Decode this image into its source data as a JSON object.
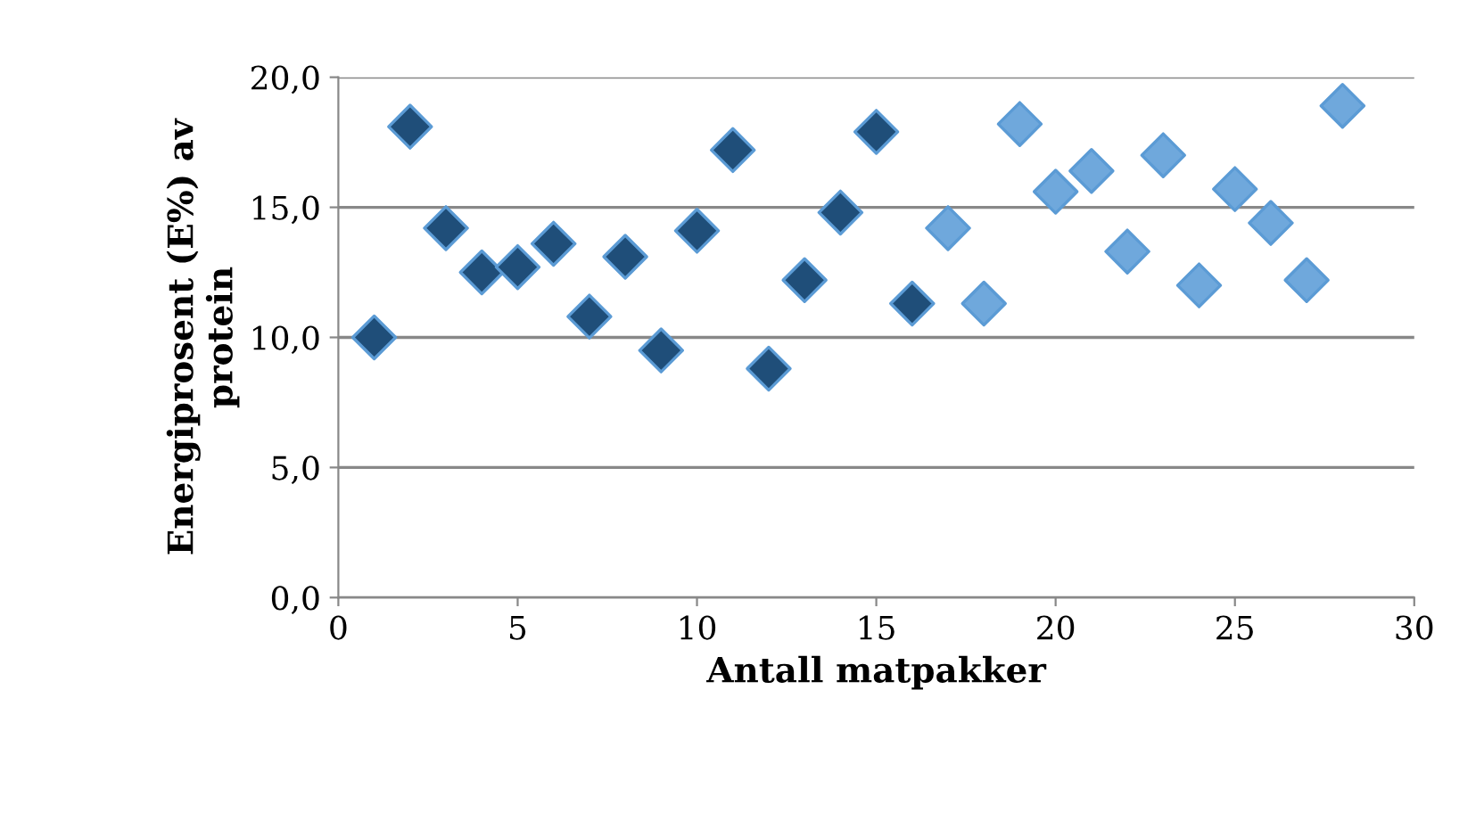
{
  "chart_data": {
    "type": "scatter",
    "xlabel": "Antall matpakker",
    "ylabel": "Energiprosent (E%) av\nprotein",
    "xlim": [
      0,
      30
    ],
    "xticks": [
      0,
      5,
      10,
      15,
      20,
      25,
      30
    ],
    "ylim": [
      0,
      20
    ],
    "yticks": [
      {
        "value": 0,
        "label": "0,0"
      },
      {
        "value": 5,
        "label": "5,0"
      },
      {
        "value": 10,
        "label": "10,0"
      },
      {
        "value": 15,
        "label": "15,0"
      },
      {
        "value": 20,
        "label": "20,0"
      }
    ],
    "grid": "y",
    "marker": "diamond",
    "series": [
      {
        "color": "#1f4e79",
        "x": [
          1,
          2,
          3,
          4,
          5,
          6,
          7,
          8,
          9,
          10,
          11,
          12,
          13,
          14,
          15,
          16
        ],
        "values": [
          10.0,
          18.1,
          14.2,
          12.5,
          12.7,
          13.6,
          10.8,
          13.1,
          9.5,
          14.1,
          17.2,
          8.8,
          12.2,
          14.8,
          17.9,
          11.3
        ]
      },
      {
        "color": "#6fa8dc",
        "x": [
          17,
          18,
          19,
          20,
          21,
          22,
          23,
          24,
          25,
          26,
          27,
          28
        ],
        "values": [
          14.2,
          11.3,
          18.2,
          15.6,
          16.4,
          13.3,
          17.0,
          12.0,
          15.7,
          14.4,
          12.2,
          18.9
        ]
      }
    ]
  }
}
